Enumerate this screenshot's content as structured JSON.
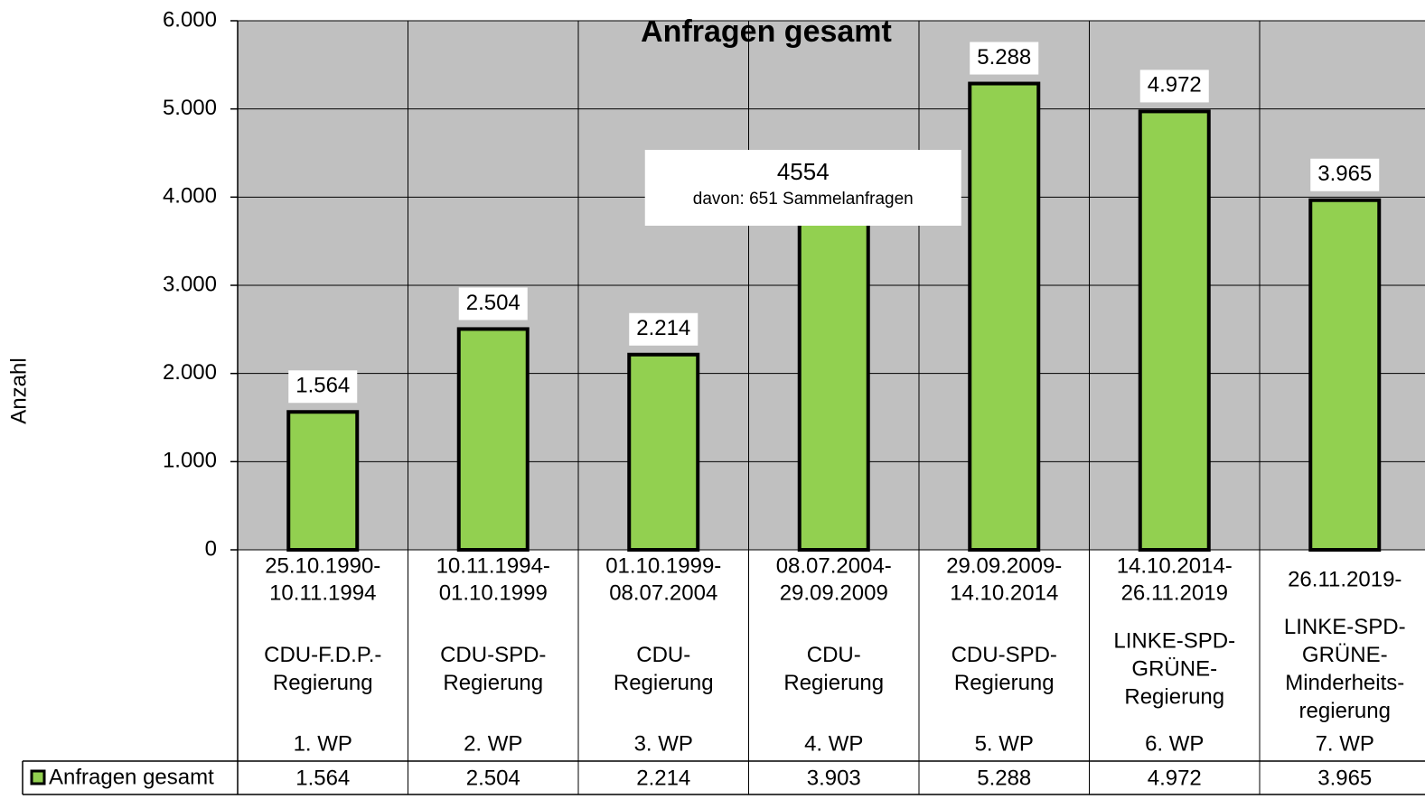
{
  "chart_data": {
    "type": "bar",
    "title": "Anfragen gesamt",
    "y_label": "Anzahl",
    "categories": [
      {
        "period": [
          "25.10.1990-",
          "10.11.1994"
        ],
        "government": [
          "CDU-F.D.P.-",
          "Regierung"
        ],
        "wp": "1. WP"
      },
      {
        "period": [
          "10.11.1994-",
          "01.10.1999"
        ],
        "government": [
          "CDU-SPD-",
          "Regierung"
        ],
        "wp": "2. WP"
      },
      {
        "period": [
          "01.10.1999-",
          "08.07.2004"
        ],
        "government": [
          "CDU-",
          "Regierung"
        ],
        "wp": "3. WP"
      },
      {
        "period": [
          "08.07.2004-",
          "29.09.2009"
        ],
        "government": [
          "CDU-",
          "Regierung"
        ],
        "wp": "4. WP"
      },
      {
        "period": [
          "29.09.2009-",
          "14.10.2014"
        ],
        "government": [
          "CDU-SPD-",
          "Regierung"
        ],
        "wp": "5. WP"
      },
      {
        "period": [
          "14.10.2014-",
          "26.11.2019"
        ],
        "government": [
          "LINKE-SPD-",
          "GRÜNE-",
          "Regierung"
        ],
        "wp": "6. WP"
      },
      {
        "period": [
          "26.11.2019-"
        ],
        "government": [
          "LINKE-SPD-",
          "GRÜNE-",
          "Minderheits-",
          "regierung"
        ],
        "wp": "7. WP"
      }
    ],
    "series": [
      {
        "name": "Anfragen gesamt",
        "color": "#92d050",
        "values": [
          1564,
          2504,
          2214,
          3903,
          5288,
          4972,
          3965
        ],
        "value_labels": [
          "1.564",
          "2.504",
          "2.214",
          "3.903",
          "5.288",
          "4.972",
          "3.965"
        ]
      }
    ],
    "annotations": [
      {
        "category": 3,
        "text": "4554",
        "subtext": "davon: 651 Sammelanfragen"
      }
    ],
    "ylim": [
      0,
      6000
    ],
    "yticks": [
      0,
      {
        "value": 1000,
        "label": "1.000"
      },
      {
        "value": 2000,
        "label": "2.000"
      },
      {
        "value": 3000,
        "label": "3.000"
      },
      {
        "value": 4000,
        "label": "4.000"
      },
      {
        "value": 5000,
        "label": "5.000"
      },
      {
        "value": 6000,
        "label": "6.000"
      }
    ],
    "grid": true,
    "plot_background": "#c0c0c0"
  }
}
